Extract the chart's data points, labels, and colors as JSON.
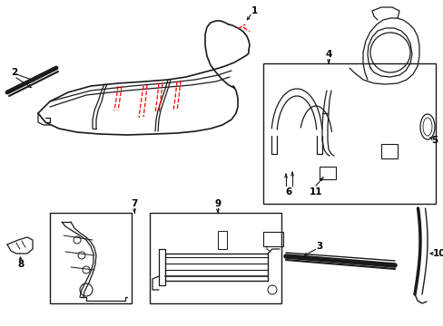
{
  "bg_color": "#ffffff",
  "line_color": "#1a1a1a",
  "red_color": "#ff0000",
  "fig_width": 4.89,
  "fig_height": 3.6,
  "dpi": 100
}
